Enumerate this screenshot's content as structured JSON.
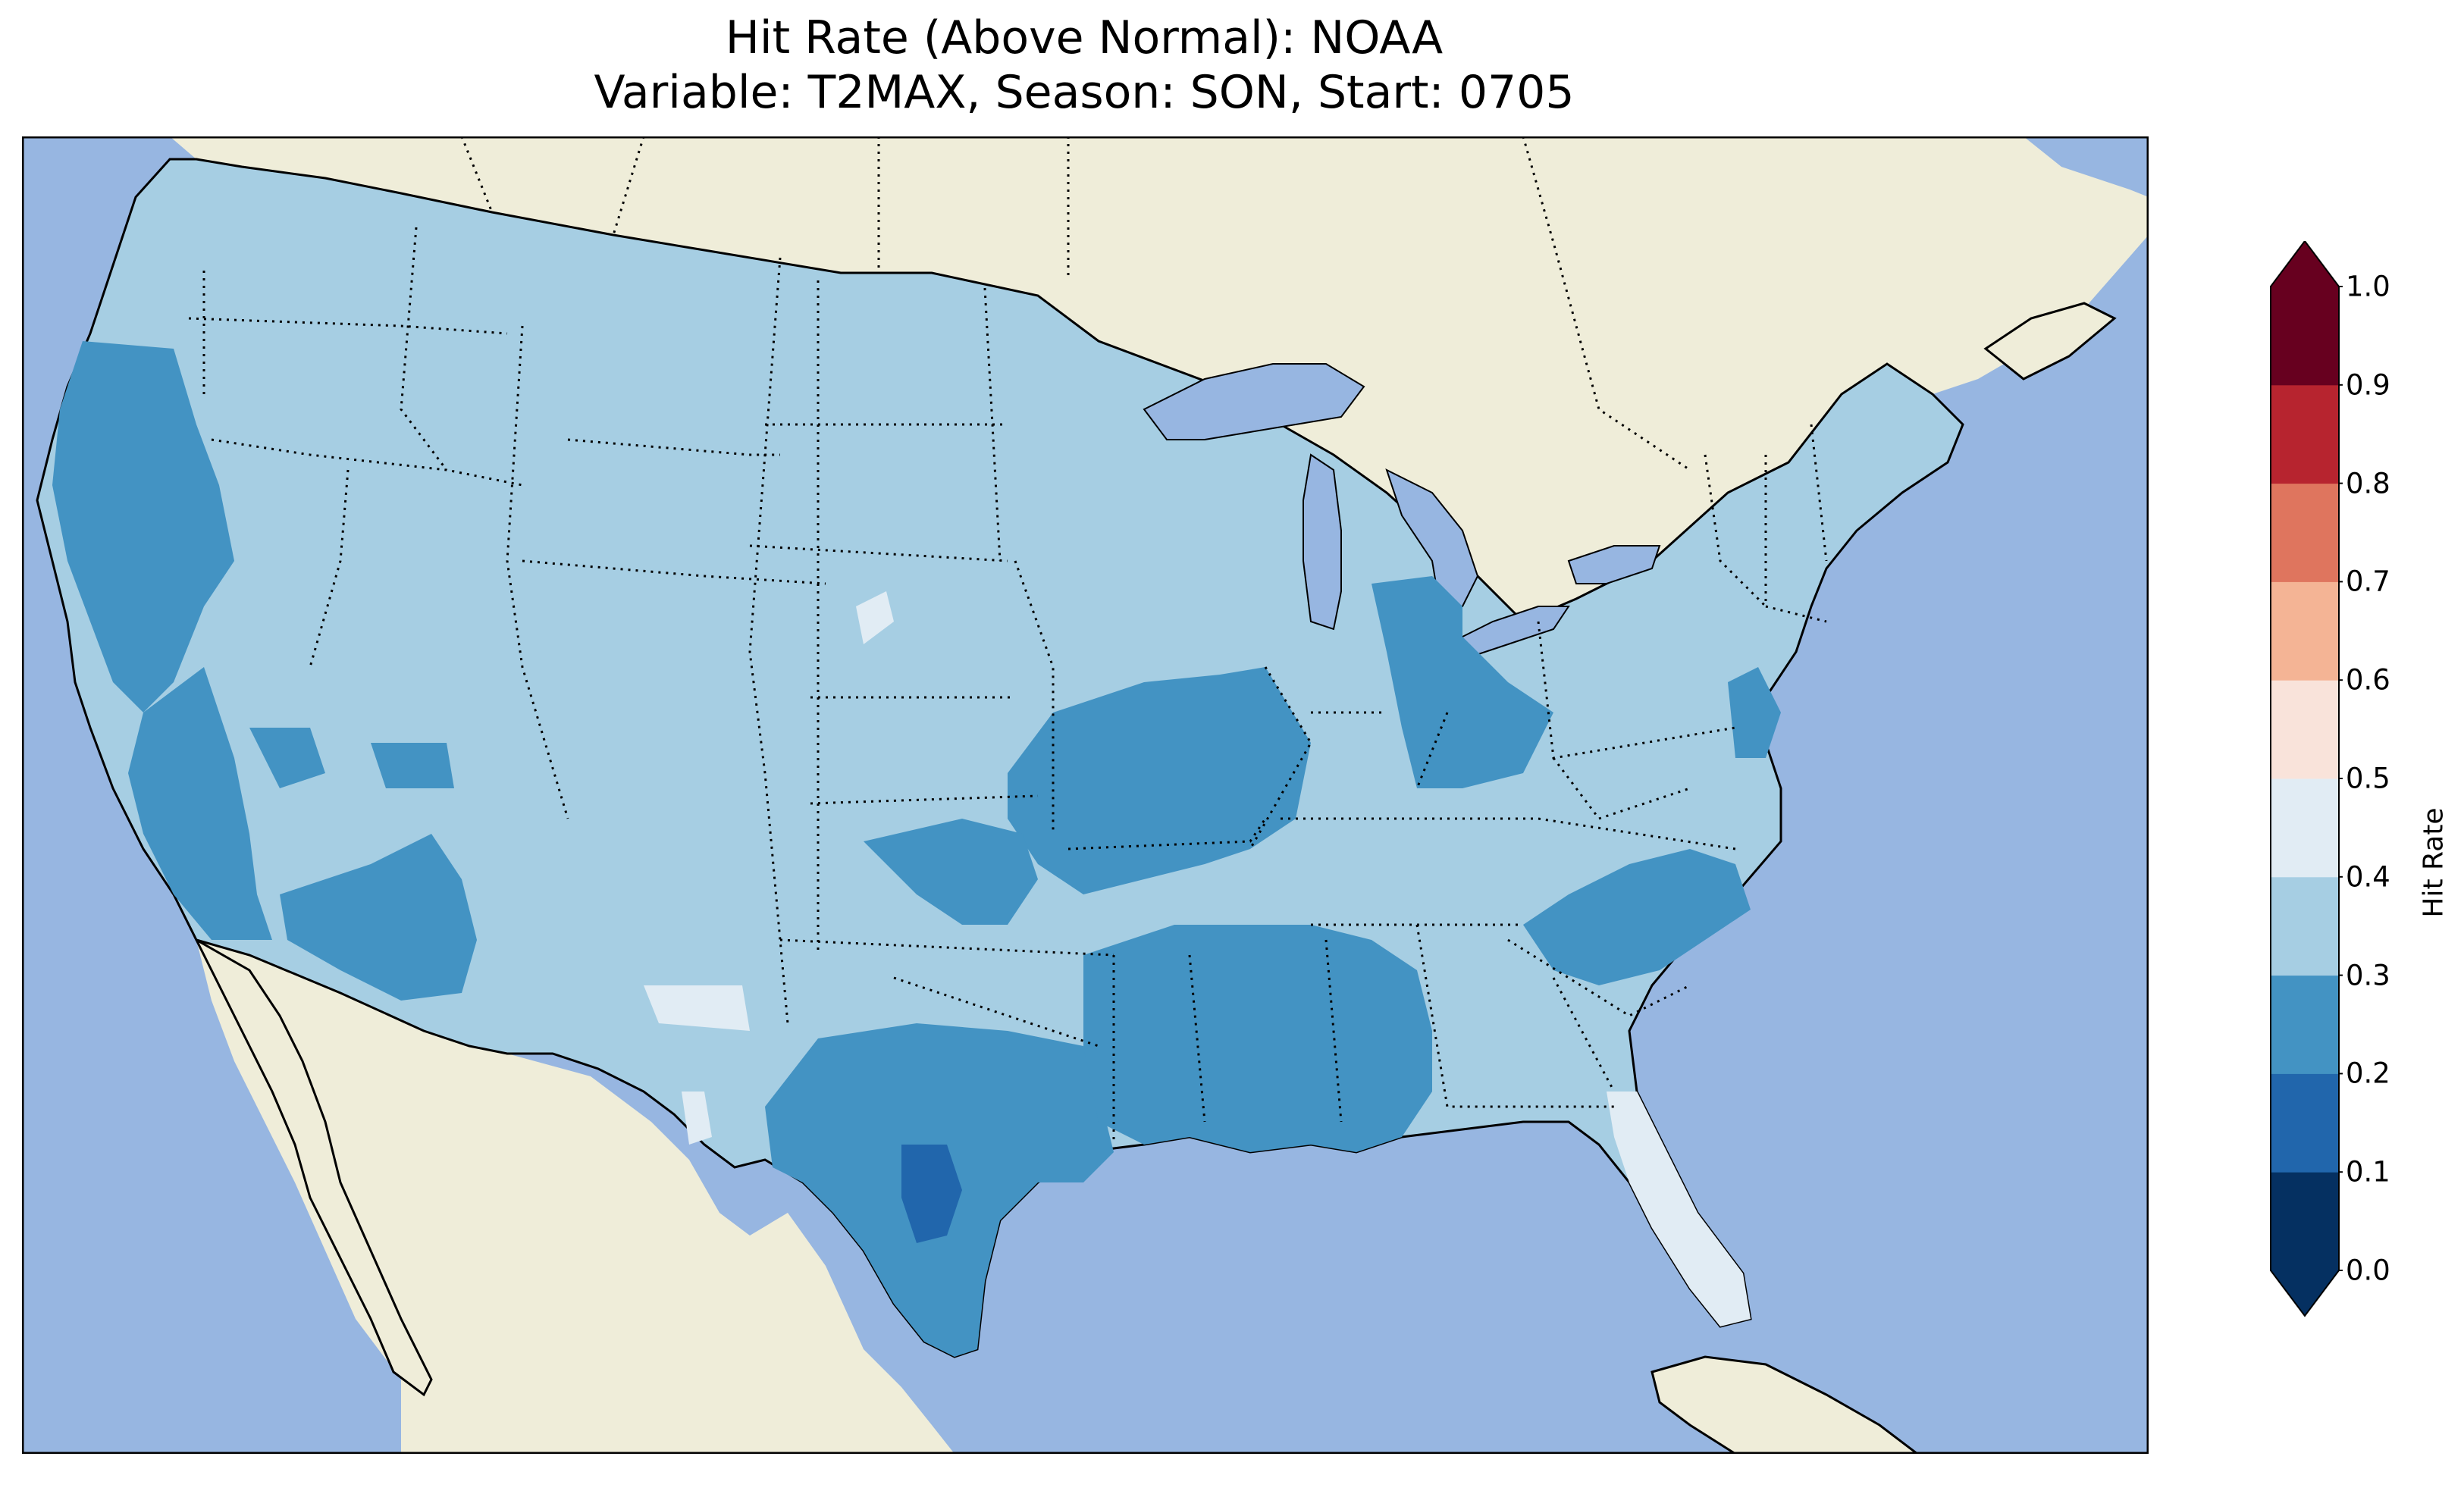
{
  "title": {
    "line1": "Hit Rate (Above Normal): NOAA",
    "line2": "Variable: T2MAX, Season: SON, Start: 0705"
  },
  "colors": {
    "ocean": "#97b6e1",
    "land_outside": "#efedd9",
    "lakes": "#97b6e1",
    "bin_0_0_0_1": "#053061",
    "bin_0_1_0_2": "#2166ac",
    "bin_0_2_0_3": "#4393c3",
    "bin_0_3_0_4": "#92c5de",
    "bin_0_4_0_5": "#d1e5f0",
    "bin_0_5_0_6": "#f7f7f7",
    "bin_0_6_0_7": "#fddbc7",
    "bin_0_7_0_8": "#f4a582",
    "bin_0_8_0_9": "#d6604d",
    "bin_0_9_1_0": "#b2182b",
    "extend_max": "#67001f"
  },
  "colorbar": {
    "label": "Hit Rate",
    "ticks": [
      "0.0",
      "0.1",
      "0.2",
      "0.3",
      "0.4",
      "0.5",
      "0.6",
      "0.7",
      "0.8",
      "0.9",
      "1.0"
    ],
    "bins": [
      {
        "range": "0.0-0.1",
        "color": "#053061"
      },
      {
        "range": "0.1-0.2",
        "color": "#2166ac"
      },
      {
        "range": "0.2-0.3",
        "color": "#4393c3"
      },
      {
        "range": "0.3-0.4",
        "color": "#a6cee3"
      },
      {
        "range": "0.4-0.5",
        "color": "#e1ecf4"
      },
      {
        "range": "0.5-0.6",
        "color": "#f9e3da"
      },
      {
        "range": "0.6-0.7",
        "color": "#f4b495"
      },
      {
        "range": "0.7-0.8",
        "color": "#df755e"
      },
      {
        "range": "0.8-0.9",
        "color": "#b7242f"
      },
      {
        "range": "0.9-1.0",
        "color": "#67001f"
      }
    ],
    "extend": "both"
  },
  "map": {
    "region": "CONUS",
    "dominant_bin": "0.3-0.4",
    "regions": [
      {
        "area": "west-coast-california-oregon",
        "bin": "0.2-0.3"
      },
      {
        "area": "southwest-arizona",
        "bin": "0.2-0.3"
      },
      {
        "area": "central-plains-missouri-arkansas",
        "bin": "0.2-0.3"
      },
      {
        "area": "texas-louisiana-mississippi-alabama",
        "bin": "0.2-0.3"
      },
      {
        "area": "south-texas-core",
        "bin": "0.1-0.2"
      },
      {
        "area": "ohio-michigan",
        "bin": "0.2-0.3"
      },
      {
        "area": "north-carolina-tennessee",
        "bin": "0.2-0.3"
      },
      {
        "area": "new-jersey-delaware",
        "bin": "0.2-0.3"
      },
      {
        "area": "florida-peninsula",
        "bin": "0.4-0.5"
      },
      {
        "area": "new-mexico-patch",
        "bin": "0.4-0.5"
      }
    ]
  }
}
